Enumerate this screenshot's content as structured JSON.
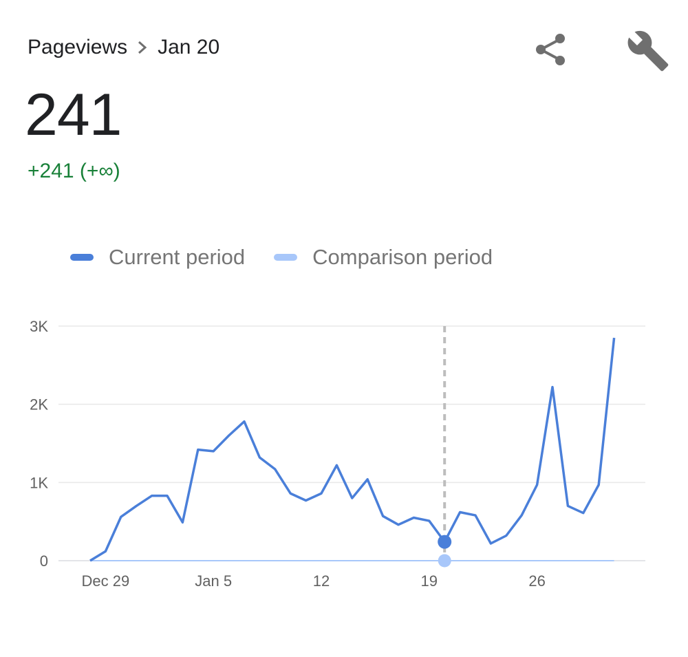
{
  "breadcrumb": {
    "metric": "Pageviews",
    "date": "Jan 20"
  },
  "value": "241",
  "delta": "+241 (+∞)",
  "icons": {
    "share": "share-icon",
    "settings": "wrench-icon"
  },
  "colors": {
    "current": "#4a7fd9",
    "comparison": "#a8c7fa",
    "delta": "#188038"
  },
  "chart_data": {
    "type": "line",
    "legend": [
      "Current period",
      "Comparison period"
    ],
    "y_ticks": [
      "0",
      "1K",
      "2K",
      "3K"
    ],
    "ylim": [
      0,
      3000
    ],
    "x_ticks": [
      "Dec 29",
      "Jan 5",
      "12",
      "19",
      "26"
    ],
    "x": [
      "Dec 28",
      "Dec 29",
      "Dec 30",
      "Dec 31",
      "Jan 1",
      "Jan 2",
      "Jan 3",
      "Jan 4",
      "Jan 5",
      "Jan 6",
      "Jan 7",
      "Jan 8",
      "Jan 9",
      "Jan 10",
      "Jan 11",
      "Jan 12",
      "Jan 13",
      "Jan 14",
      "Jan 15",
      "Jan 16",
      "Jan 17",
      "Jan 18",
      "Jan 19",
      "Jan 20",
      "Jan 21",
      "Jan 22",
      "Jan 23",
      "Jan 24",
      "Jan 25",
      "Jan 26",
      "Jan 27",
      "Jan 28",
      "Jan 29",
      "Jan 30",
      "Jan 31"
    ],
    "series": [
      {
        "name": "Current period",
        "values": [
          0,
          120,
          560,
          700,
          830,
          830,
          490,
          1420,
          1400,
          1600,
          1780,
          1320,
          1170,
          860,
          770,
          860,
          1220,
          800,
          1040,
          570,
          460,
          550,
          510,
          241,
          620,
          580,
          220,
          320,
          580,
          970,
          2220,
          700,
          610,
          970,
          2850
        ]
      },
      {
        "name": "Comparison period",
        "values": [
          0,
          0,
          0,
          0,
          0,
          0,
          0,
          0,
          0,
          0,
          0,
          0,
          0,
          0,
          0,
          0,
          0,
          0,
          0,
          0,
          0,
          0,
          0,
          0,
          0,
          0,
          0,
          0,
          0,
          0,
          0,
          0,
          0,
          0,
          0
        ]
      }
    ],
    "highlight": {
      "x": "Jan 20",
      "current": 241,
      "comparison": 0
    },
    "grid": true
  }
}
